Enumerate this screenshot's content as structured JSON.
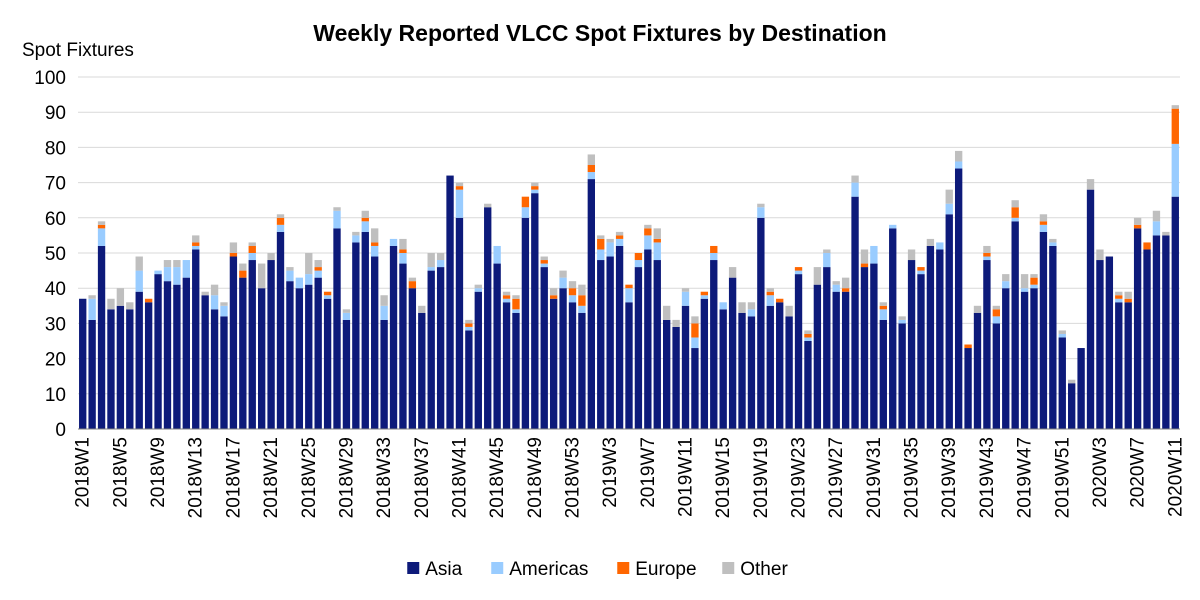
{
  "chart_data": {
    "type": "bar",
    "stacked": true,
    "title": "Weekly Reported VLCC Spot Fixtures by Destination",
    "ylabel": "Spot Fixtures",
    "xlabel": "",
    "ylim": [
      0,
      100
    ],
    "yticks": [
      0,
      10,
      20,
      30,
      40,
      50,
      60,
      70,
      80,
      90,
      100
    ],
    "grid": "horizontal",
    "legend_position": "bottom",
    "tick_label_every": 4,
    "categories": [
      "2018W1",
      "2018W2",
      "2018W3",
      "2018W4",
      "2018W5",
      "2018W6",
      "2018W7",
      "2018W8",
      "2018W9",
      "2018W10",
      "2018W11",
      "2018W12",
      "2018W13",
      "2018W14",
      "2018W15",
      "2018W16",
      "2018W17",
      "2018W18",
      "2018W19",
      "2018W20",
      "2018W21",
      "2018W22",
      "2018W23",
      "2018W24",
      "2018W25",
      "2018W26",
      "2018W27",
      "2018W28",
      "2018W29",
      "2018W30",
      "2018W31",
      "2018W32",
      "2018W33",
      "2018W34",
      "2018W35",
      "2018W36",
      "2018W37",
      "2018W38",
      "2018W39",
      "2018W40",
      "2018W41",
      "2018W42",
      "2018W43",
      "2018W44",
      "2018W45",
      "2018W46",
      "2018W47",
      "2018W48",
      "2018W49",
      "2018W50",
      "2018W51",
      "2018W52",
      "2018W53",
      "2018W54",
      "2019W1",
      "2019W2",
      "2019W3",
      "2019W4",
      "2019W5",
      "2019W6",
      "2019W7",
      "2019W8",
      "2019W9",
      "2019W10",
      "2019W11",
      "2019W12",
      "2019W13",
      "2019W14",
      "2019W15",
      "2019W16",
      "2019W17",
      "2019W18",
      "2019W19",
      "2019W20",
      "2019W21",
      "2019W22",
      "2019W23",
      "2019W24",
      "2019W25",
      "2019W26",
      "2019W27",
      "2019W28",
      "2019W29",
      "2019W30",
      "2019W31",
      "2019W32",
      "2019W33",
      "2019W34",
      "2019W35",
      "2019W36",
      "2019W37",
      "2019W38",
      "2019W39",
      "2019W40",
      "2019W41",
      "2019W42",
      "2019W43",
      "2019W44",
      "2019W45",
      "2019W46",
      "2019W47",
      "2019W48",
      "2019W49",
      "2019W50",
      "2019W51",
      "2019W52",
      "2020W1",
      "2020W2",
      "2020W3",
      "2020W4",
      "2020W5",
      "2020W6",
      "2020W7",
      "2020W8",
      "2020W9",
      "2020W10",
      "2020W11"
    ],
    "series": [
      {
        "name": "Asia",
        "color": "#0d1a7a",
        "values": [
          37,
          31,
          52,
          34,
          35,
          34,
          39,
          36,
          44,
          42,
          41,
          43,
          51,
          38,
          34,
          32,
          49,
          43,
          48,
          40,
          48,
          56,
          42,
          40,
          41,
          43,
          37,
          57,
          31,
          53,
          56,
          49,
          31,
          52,
          47,
          40,
          33,
          45,
          46,
          72,
          60,
          28,
          39,
          63,
          47,
          36,
          33,
          60,
          67,
          46,
          37,
          40,
          36,
          33,
          71,
          48,
          49,
          52,
          36,
          46,
          51,
          48,
          31,
          29,
          35,
          23,
          37,
          48,
          34,
          43,
          33,
          32,
          60,
          35,
          36,
          32,
          44,
          25,
          41,
          46,
          39,
          39,
          66,
          46,
          47,
          31,
          57,
          30,
          48,
          44,
          52,
          51,
          61,
          74,
          23,
          33,
          48,
          30,
          40,
          59,
          39,
          40,
          56,
          52,
          26,
          13,
          23,
          68,
          48,
          49,
          36,
          36,
          57,
          51,
          55,
          55,
          66
        ]
      },
      {
        "name": "Americas",
        "color": "#99ccff",
        "values": [
          0,
          6,
          5,
          0,
          0,
          0,
          6,
          0,
          1,
          4,
          5,
          5,
          1,
          0,
          4,
          3,
          0,
          0,
          2,
          0,
          0,
          2,
          3,
          3,
          3,
          2,
          1,
          5,
          2,
          2,
          3,
          3,
          4,
          2,
          3,
          0,
          0,
          1,
          2,
          0,
          8,
          1,
          1,
          0,
          5,
          1,
          1,
          3,
          1,
          1,
          0,
          3,
          2,
          2,
          2,
          3,
          4,
          2,
          4,
          2,
          4,
          5,
          0,
          0,
          4,
          3,
          1,
          2,
          2,
          0,
          0,
          2,
          3,
          3,
          0,
          0,
          1,
          1,
          0,
          4,
          2,
          0,
          4,
          0,
          5,
          3,
          1,
          1,
          0,
          1,
          0,
          2,
          3,
          2,
          0,
          0,
          1,
          2,
          2,
          1,
          1,
          1,
          2,
          1,
          1,
          0,
          0,
          0,
          0,
          0,
          1,
          0,
          0,
          0,
          4,
          0,
          15
        ]
      },
      {
        "name": "Europe",
        "color": "#ff6600",
        "values": [
          0,
          0,
          1,
          0,
          0,
          0,
          0,
          1,
          0,
          0,
          0,
          0,
          1,
          0,
          0,
          0,
          1,
          2,
          2,
          0,
          0,
          2,
          0,
          0,
          0,
          1,
          1,
          0,
          0,
          0,
          1,
          1,
          0,
          0,
          1,
          2,
          0,
          0,
          0,
          0,
          1,
          1,
          0,
          0,
          0,
          1,
          3,
          3,
          1,
          1,
          1,
          0,
          2,
          3,
          2,
          3,
          0,
          1,
          1,
          2,
          2,
          1,
          0,
          0,
          0,
          4,
          1,
          2,
          0,
          0,
          0,
          0,
          0,
          1,
          1,
          0,
          1,
          1,
          0,
          0,
          0,
          1,
          0,
          1,
          0,
          1,
          0,
          0,
          0,
          1,
          0,
          0,
          0,
          0,
          1,
          0,
          1,
          2,
          0,
          3,
          0,
          2,
          1,
          0,
          0,
          0,
          0,
          0,
          0,
          0,
          1,
          1,
          1,
          2,
          0,
          0,
          10
        ]
      },
      {
        "name": "Other",
        "color": "#bfbfbf",
        "values": [
          0,
          1,
          1,
          3,
          5,
          2,
          4,
          0,
          0,
          2,
          2,
          0,
          2,
          1,
          3,
          1,
          3,
          2,
          1,
          7,
          2,
          1,
          1,
          0,
          6,
          2,
          0,
          1,
          1,
          1,
          2,
          4,
          3,
          0,
          3,
          1,
          2,
          4,
          2,
          0,
          1,
          1,
          1,
          1,
          0,
          1,
          1,
          0,
          1,
          1,
          2,
          2,
          2,
          3,
          3,
          1,
          1,
          1,
          0,
          0,
          1,
          3,
          4,
          2,
          1,
          2,
          0,
          0,
          0,
          3,
          3,
          2,
          1,
          1,
          0,
          3,
          0,
          1,
          5,
          1,
          1,
          3,
          2,
          4,
          0,
          1,
          0,
          1,
          3,
          0,
          2,
          0,
          4,
          3,
          0,
          2,
          2,
          1,
          2,
          2,
          4,
          1,
          2,
          1,
          1,
          1,
          0,
          3,
          3,
          0,
          1,
          2,
          2,
          0,
          3,
          1,
          1
        ]
      }
    ]
  }
}
